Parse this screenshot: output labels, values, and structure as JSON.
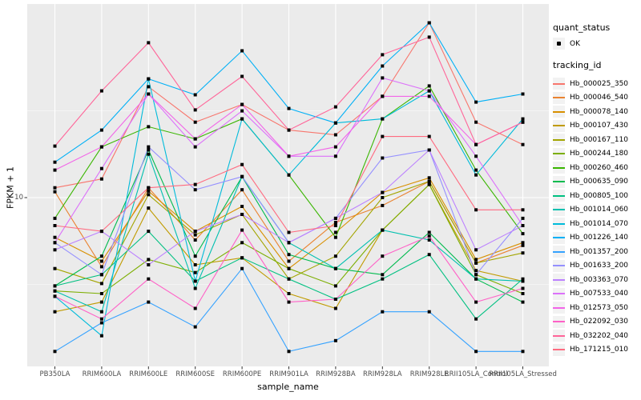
{
  "chart": {
    "ylabel": "FPKM + 1",
    "xlabel": "sample_name",
    "y_tick_label": "10"
  },
  "legend": {
    "quant_status_title": "quant_status",
    "quant_status_items": [
      {
        "label": "OK"
      }
    ],
    "tracking_id_title": "tracking_id"
  },
  "style_colors": {
    "panel_background": "#EBEBEB",
    "gridline": "#FFFFFF",
    "axis_text": "#4D4D4D",
    "tick_mark": "#333333",
    "point_marker": "#000000",
    "legend_key_background": "#F2F2F2"
  },
  "chart_data": {
    "type": "line",
    "title": "",
    "xlabel": "sample_name",
    "ylabel": "FPKM + 1",
    "y_scale": "log10",
    "y_ticks_labeled": [
      10
    ],
    "y_minor_gridlines": [
      3.162,
      31.62
    ],
    "ylim_approx": [
      1.05,
      110
    ],
    "grid": "white on grey panel",
    "legend_position": "right",
    "point_marker": "small black square at every data point (quant_status = OK)",
    "categories": [
      "PB350LA",
      "RRIM600LA",
      "RRIM600LE",
      "RRIM600SE",
      "RRIM600PE",
      "RRIM901LA",
      "RRIM928BA",
      "RRIM928LA",
      "RRIM928LE",
      "RRII105LA_Control",
      "RRII105LA_Stressed"
    ],
    "series": [
      {
        "name": "Hb_000025_350",
        "color": "#F8766D",
        "values": [
          11.4,
          12.8,
          43.5,
          27.2,
          34.4,
          24.5,
          23.0,
          38.3,
          101.6,
          27.2,
          20.2
        ]
      },
      {
        "name": "Hb_000046_540",
        "color": "#EA8331",
        "values": [
          10.8,
          4.0,
          11.4,
          5.7,
          11.1,
          4.3,
          7.2,
          9.0,
          12.4,
          4.2,
          5.3
        ]
      },
      {
        "name": "Hb_000078_140",
        "color": "#D89000",
        "values": [
          5.9,
          4.3,
          10.9,
          6.4,
          8.9,
          3.9,
          6.3,
          10.7,
          13.0,
          4.4,
          5.5
        ]
      },
      {
        "name": "Hb_000107_430",
        "color": "#C09B00",
        "values": [
          2.2,
          2.5,
          8.7,
          4.1,
          4.5,
          2.8,
          2.3,
          6.5,
          11.9,
          3.8,
          3.3
        ]
      },
      {
        "name": "Hb_000167_110",
        "color": "#A3A500",
        "values": [
          3.9,
          3.2,
          10.4,
          6.1,
          8.0,
          3.4,
          4.6,
          10.0,
          12.4,
          4.2,
          4.8
        ]
      },
      {
        "name": "Hb_000244_180",
        "color": "#7CAE00",
        "values": [
          2.9,
          2.8,
          4.4,
          3.7,
          5.5,
          3.9,
          3.1,
          6.5,
          11.9,
          3.6,
          2.8
        ]
      },
      {
        "name": "Hb_000260_460",
        "color": "#39B600",
        "values": [
          7.6,
          19.6,
          25.6,
          21.8,
          28.4,
          13.5,
          5.9,
          28.4,
          44.0,
          14.4,
          6.2
        ]
      },
      {
        "name": "Hb_000635_090",
        "color": "#00BB4E",
        "values": [
          3.1,
          4.6,
          18.8,
          4.6,
          13.2,
          4.7,
          3.9,
          3.6,
          6.3,
          3.4,
          2.5
        ]
      },
      {
        "name": "Hb_000805_100",
        "color": "#00C081",
        "values": [
          3.1,
          3.6,
          6.4,
          3.3,
          4.5,
          3.4,
          2.6,
          3.4,
          4.7,
          2.0,
          3.4
        ]
      },
      {
        "name": "Hb_001014_060",
        "color": "#00C0AF",
        "values": [
          2.9,
          2.2,
          17.8,
          3.0,
          13.2,
          5.5,
          3.9,
          6.5,
          5.7,
          3.4,
          3.3
        ]
      },
      {
        "name": "Hb_001014_070",
        "color": "#00BBDA",
        "values": [
          2.7,
          1.6,
          48.3,
          3.3,
          28.4,
          13.5,
          26.9,
          28.4,
          41.2,
          13.5,
          28.4
        ]
      },
      {
        "name": "Hb_001226_140",
        "color": "#00B0F6",
        "values": [
          16.0,
          24.5,
          48.3,
          39.1,
          70.1,
          32.6,
          26.9,
          57.3,
          101.6,
          35.5,
          39.5
        ]
      },
      {
        "name": "Hb_001357_200",
        "color": "#35A2FF",
        "values": [
          1.3,
          1.9,
          2.5,
          1.8,
          3.9,
          1.3,
          1.5,
          2.2,
          2.2,
          1.3,
          1.3
        ]
      },
      {
        "name": "Hb_001633_200",
        "color": "#9590FF",
        "values": [
          5.5,
          3.6,
          19.6,
          11.1,
          13.2,
          5.5,
          7.6,
          16.9,
          18.8,
          3.6,
          7.6
        ]
      },
      {
        "name": "Hb_003363_070",
        "color": "#BC81FF",
        "values": [
          5.0,
          6.4,
          4.1,
          6.4,
          8.0,
          5.5,
          7.6,
          10.7,
          18.8,
          5.0,
          6.9
        ]
      },
      {
        "name": "Hb_007533_040",
        "color": "#DC71FA",
        "values": [
          5.5,
          14.7,
          39.5,
          19.6,
          31.6,
          17.3,
          17.3,
          48.9,
          41.2,
          17.3,
          6.9
        ]
      },
      {
        "name": "Hb_012573_050",
        "color": "#F265E8",
        "values": [
          14.4,
          19.6,
          39.5,
          21.8,
          34.4,
          17.3,
          19.6,
          38.3,
          38.3,
          20.2,
          27.2
        ]
      },
      {
        "name": "Hb_022092_030",
        "color": "#FF61C7",
        "values": [
          2.7,
          2.0,
          3.4,
          2.3,
          6.5,
          2.5,
          2.6,
          4.6,
          6.0,
          2.5,
          3.0
        ]
      },
      {
        "name": "Hb_032202_040",
        "color": "#FF6599",
        "values": [
          19.8,
          41.2,
          78.0,
          32.0,
          49.9,
          24.5,
          33.3,
          66.5,
          84.0,
          20.2,
          27.2
        ]
      },
      {
        "name": "Hb_171215_010",
        "color": "#FF6B80",
        "values": [
          6.9,
          6.4,
          11.4,
          11.9,
          15.5,
          6.3,
          6.9,
          22.5,
          22.5,
          8.5,
          8.5
        ]
      }
    ]
  }
}
